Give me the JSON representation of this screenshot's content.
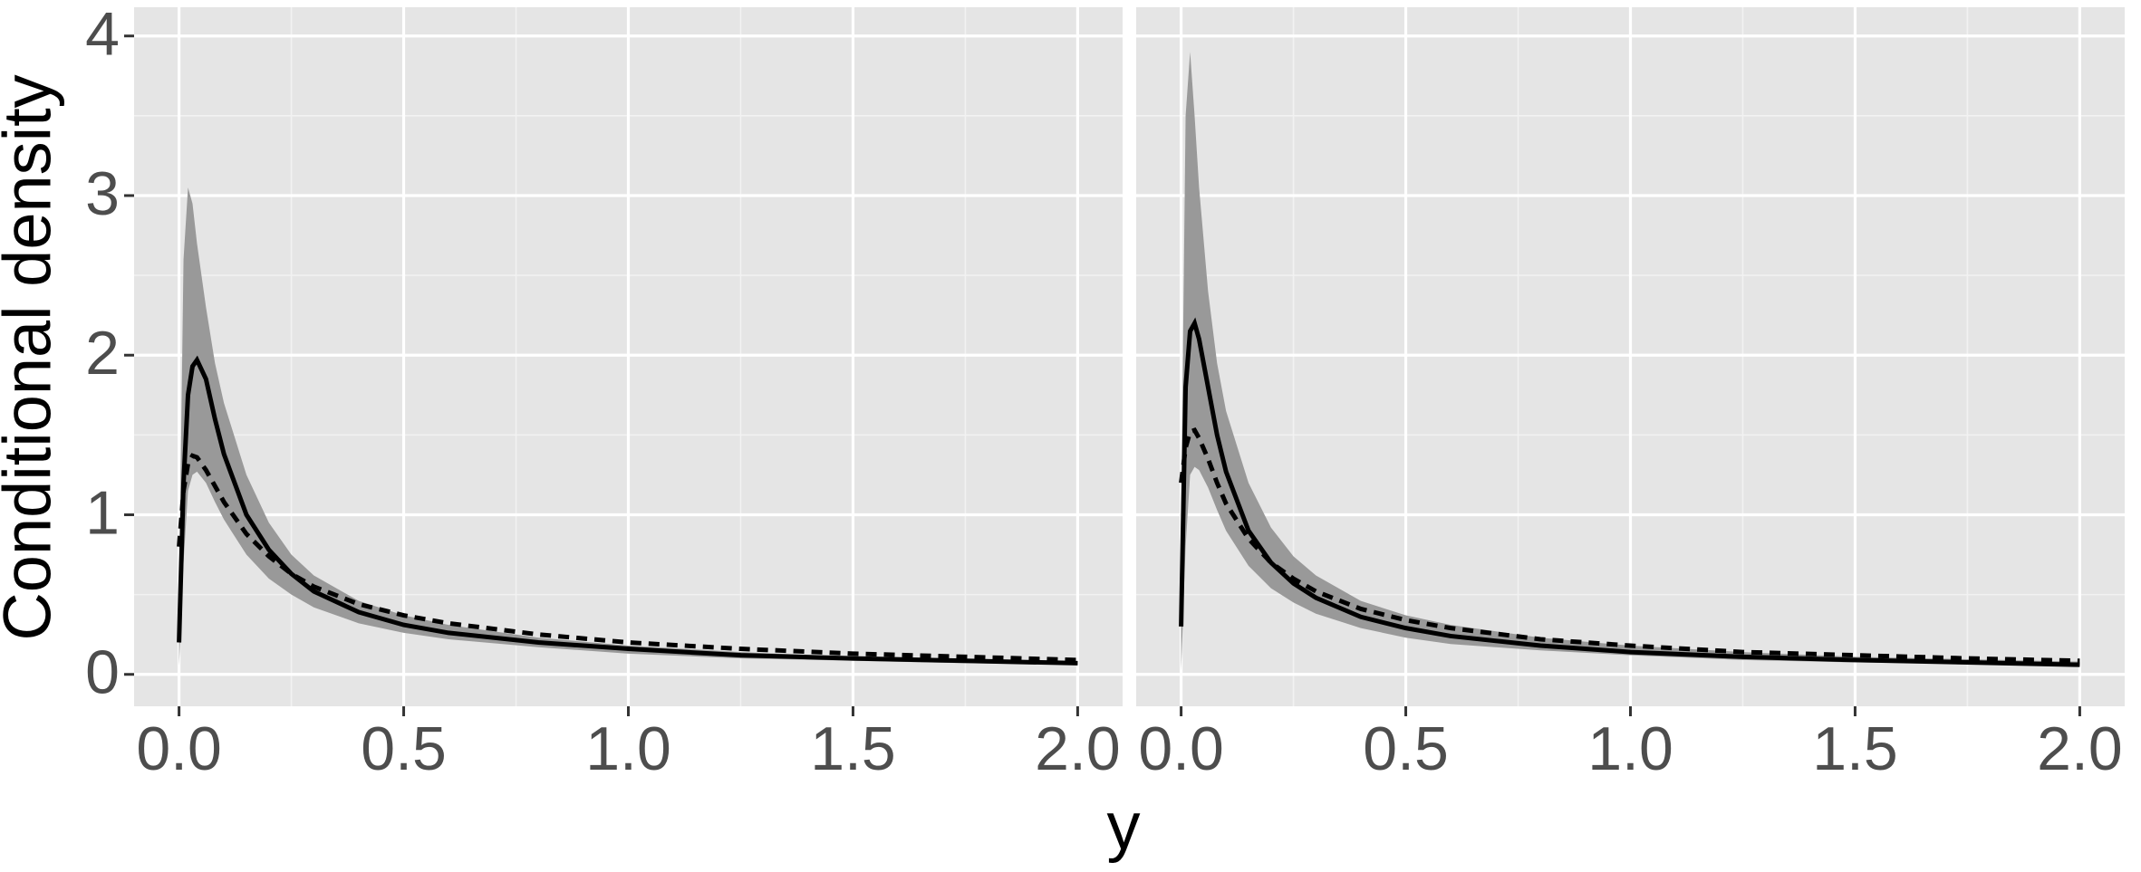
{
  "chart_data": {
    "type": "line",
    "xlabel": "y",
    "ylabel": "Conditional density",
    "xlim": [
      -0.1,
      2.1
    ],
    "ylim": [
      -0.2,
      4.18
    ],
    "xticks": [
      {
        "value": 0,
        "label": "0.0"
      },
      {
        "value": 0.5,
        "label": "0.5"
      },
      {
        "value": 1,
        "label": "1.0"
      },
      {
        "value": 1.5,
        "label": "1.5"
      },
      {
        "value": 2,
        "label": "2.0"
      }
    ],
    "yticks": [
      0,
      1,
      2,
      3,
      4
    ],
    "grid": true,
    "x": [
      0,
      0.01,
      0.02,
      0.03,
      0.04,
      0.06,
      0.08,
      0.1,
      0.15,
      0.2,
      0.25,
      0.3,
      0.4,
      0.5,
      0.6,
      0.8,
      1.0,
      1.25,
      1.5,
      1.75,
      2.0
    ],
    "panels": [
      {
        "band": {
          "color": "#999999",
          "lower": [
            0.05,
            0.7,
            1.15,
            1.25,
            1.27,
            1.2,
            1.08,
            0.97,
            0.75,
            0.6,
            0.5,
            0.42,
            0.32,
            0.26,
            0.22,
            0.17,
            0.13,
            0.1,
            0.085,
            0.07,
            0.06
          ],
          "upper": [
            0.5,
            2.6,
            3.05,
            2.95,
            2.7,
            2.3,
            1.95,
            1.7,
            1.25,
            0.95,
            0.75,
            0.62,
            0.46,
            0.37,
            0.31,
            0.23,
            0.18,
            0.14,
            0.11,
            0.095,
            0.08
          ]
        },
        "series": [
          {
            "color": "#000000",
            "dash": "solid",
            "values": [
              0.2,
              1.2,
              1.75,
              1.93,
              1.97,
              1.85,
              1.6,
              1.38,
              1.0,
              0.78,
              0.63,
              0.52,
              0.39,
              0.31,
              0.26,
              0.2,
              0.16,
              0.12,
              0.1,
              0.085,
              0.07
            ]
          },
          {
            "color": "#000000",
            "dash": "dashed",
            "values": [
              0.8,
              1.15,
              1.32,
              1.37,
              1.36,
              1.28,
              1.18,
              1.08,
              0.88,
              0.74,
              0.63,
              0.55,
              0.44,
              0.37,
              0.32,
              0.25,
              0.2,
              0.16,
              0.13,
              0.11,
              0.09
            ]
          }
        ]
      },
      {
        "band": {
          "color": "#999999",
          "lower": [
            0.02,
            0.8,
            1.25,
            1.3,
            1.28,
            1.17,
            1.03,
            0.9,
            0.68,
            0.54,
            0.45,
            0.38,
            0.29,
            0.23,
            0.19,
            0.15,
            0.12,
            0.09,
            0.075,
            0.065,
            0.055
          ],
          "upper": [
            1.0,
            3.5,
            3.9,
            3.5,
            3.05,
            2.4,
            1.95,
            1.65,
            1.2,
            0.92,
            0.74,
            0.62,
            0.46,
            0.37,
            0.31,
            0.23,
            0.18,
            0.14,
            0.11,
            0.095,
            0.08
          ]
        },
        "series": [
          {
            "color": "#000000",
            "dash": "solid",
            "values": [
              0.3,
              1.8,
              2.15,
              2.2,
              2.1,
              1.8,
              1.5,
              1.27,
              0.9,
              0.7,
              0.57,
              0.48,
              0.36,
              0.29,
              0.24,
              0.18,
              0.14,
              0.11,
              0.09,
              0.075,
              0.06
            ]
          },
          {
            "color": "#000000",
            "dash": "dashed",
            "values": [
              1.2,
              1.42,
              1.52,
              1.53,
              1.48,
              1.35,
              1.2,
              1.07,
              0.85,
              0.7,
              0.6,
              0.52,
              0.41,
              0.34,
              0.29,
              0.22,
              0.18,
              0.14,
              0.12,
              0.1,
              0.085
            ]
          }
        ]
      }
    ]
  }
}
